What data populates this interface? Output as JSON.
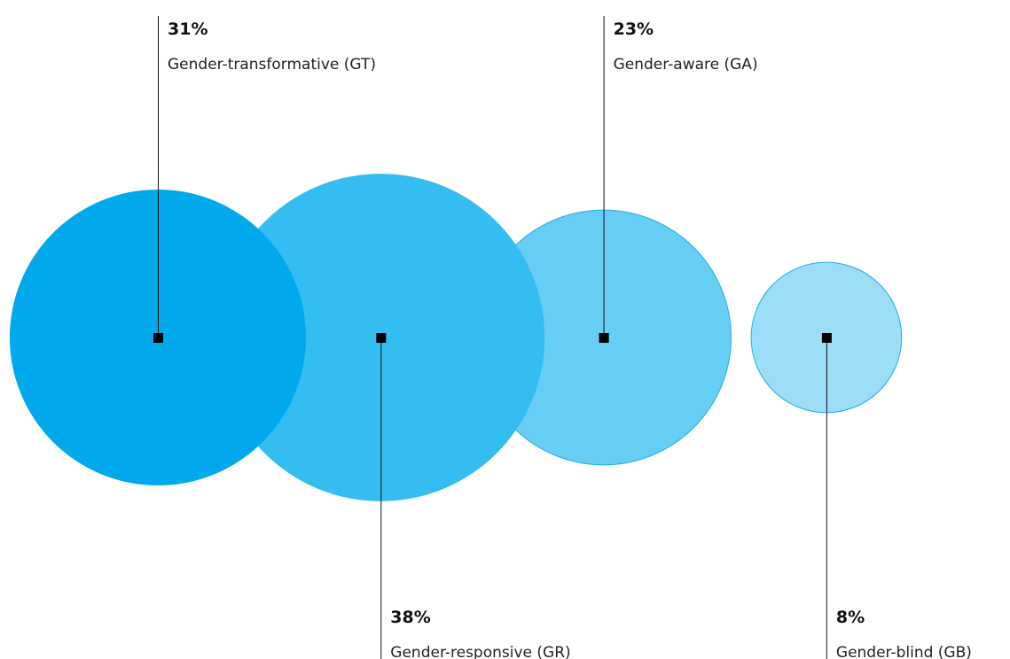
{
  "chart_data": {
    "type": "bubble",
    "categories": [
      "Gender-transformative (GT)",
      "Gender-responsive (GR)",
      "Gender-aware (GA)",
      "Gender-blind (GB)"
    ],
    "values": [
      31,
      38,
      23,
      8
    ],
    "value_labels": [
      "31%",
      "38%",
      "23%",
      "8%"
    ],
    "colors": [
      "#00a9ec",
      "#33bdf0",
      "#66cdf4",
      "#9cdef7"
    ]
  }
}
